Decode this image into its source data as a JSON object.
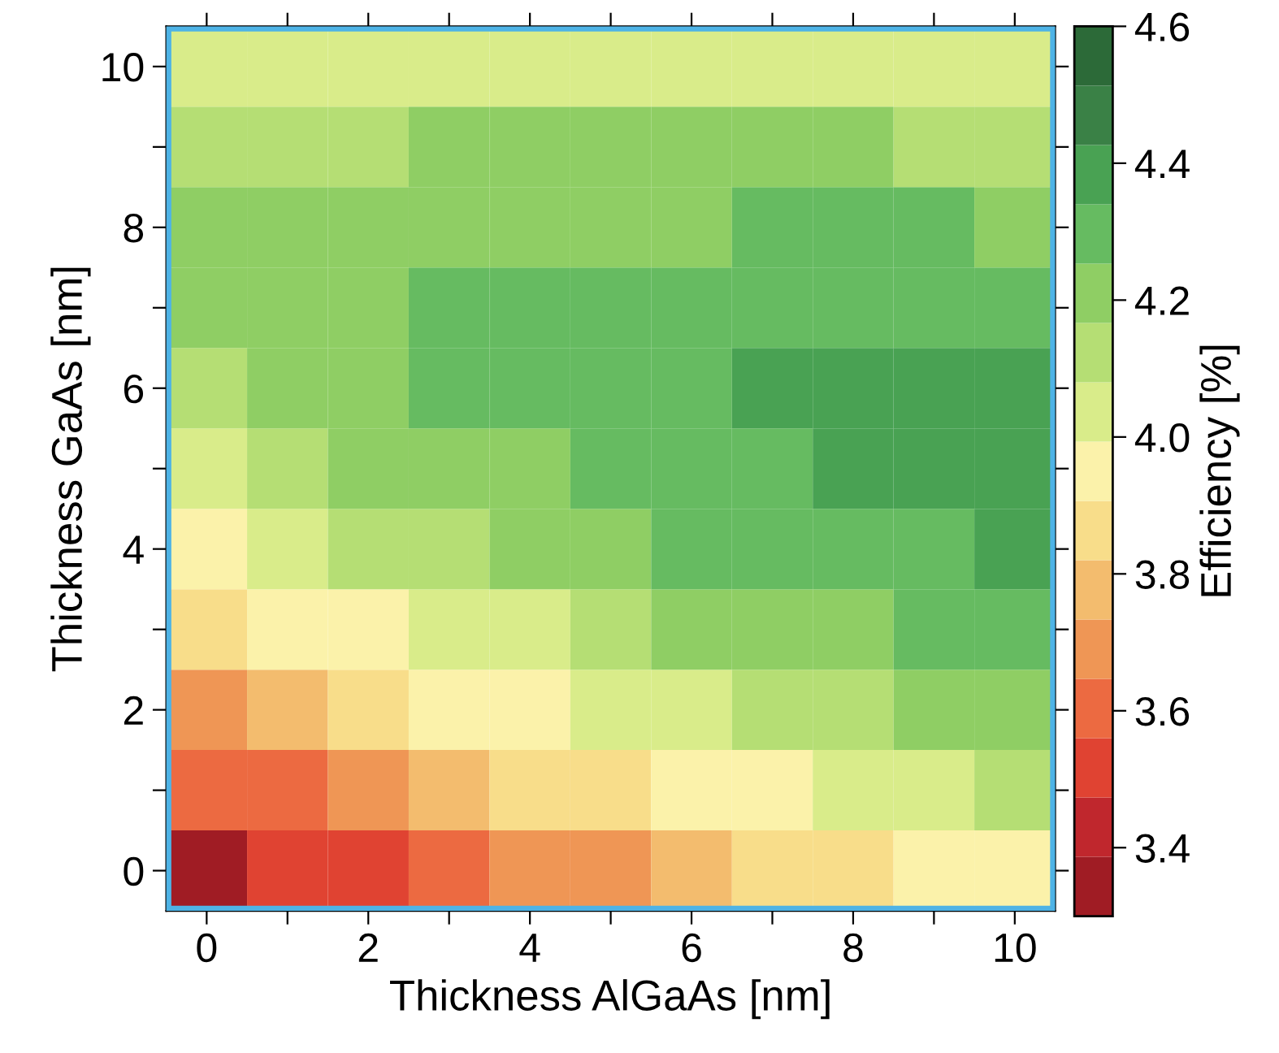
{
  "chart_data": {
    "type": "heatmap",
    "xlabel": "Thickness AlGaAs [nm]",
    "ylabel": "Thickness GaAs [nm]",
    "clabel": "Efficiency [%]",
    "categories": [
      "0",
      null,
      "2",
      null,
      "4",
      null,
      "6",
      null,
      "8",
      null,
      "10"
    ],
    "y_categories": [
      "10",
      null,
      "8",
      null,
      "6",
      null,
      "4",
      null,
      "2",
      null,
      "0"
    ],
    "clim": [
      3.3,
      4.6
    ],
    "cticks": [
      3.4,
      3.6,
      3.8,
      {
        "value": 4,
        "label": "4.0"
      },
      4.2,
      4.4,
      4.6
    ],
    "colors": [
      "#a01c24",
      "#c0272d",
      "#e04332",
      "#ec6a41",
      "#ef9655",
      "#f3bc6e",
      "#f8dd8a",
      "#fbf2aa",
      "#d9ec8a",
      "#b5de74",
      "#8fce64",
      "#66bb61",
      "#49a253",
      "#3a8146",
      "#2c6a38"
    ],
    "cells": [
      [
        4.04,
        4.04,
        4.04,
        4.04,
        4.04,
        4.04,
        4.04,
        4.04,
        4.04,
        4.04,
        4.04
      ],
      [
        4.12,
        4.12,
        4.12,
        4.21,
        4.21,
        4.21,
        4.21,
        4.21,
        4.21,
        4.12,
        4.12
      ],
      [
        4.21,
        4.21,
        4.21,
        4.21,
        4.21,
        4.21,
        4.21,
        4.3,
        4.3,
        4.3,
        4.21
      ],
      [
        4.21,
        4.21,
        4.21,
        4.3,
        4.3,
        4.3,
        4.3,
        4.3,
        4.3,
        4.3,
        4.3
      ],
      [
        4.12,
        4.21,
        4.21,
        4.3,
        4.3,
        4.3,
        4.3,
        4.38,
        4.38,
        4.38,
        4.38
      ],
      [
        4.04,
        4.12,
        4.21,
        4.21,
        4.21,
        4.3,
        4.3,
        4.3,
        4.38,
        4.38,
        4.38
      ],
      [
        3.95,
        4.04,
        4.12,
        4.12,
        4.21,
        4.21,
        4.3,
        4.3,
        4.3,
        4.3,
        4.38
      ],
      [
        3.86,
        3.95,
        3.95,
        4.04,
        4.04,
        4.12,
        4.21,
        4.21,
        4.21,
        4.3,
        4.3
      ],
      [
        3.69,
        3.78,
        3.86,
        3.95,
        3.95,
        4.04,
        4.04,
        4.12,
        4.12,
        4.21,
        4.21
      ],
      [
        3.6,
        3.6,
        3.69,
        3.78,
        3.86,
        3.86,
        3.95,
        3.95,
        4.04,
        4.04,
        4.12
      ],
      [
        3.34,
        3.52,
        3.52,
        3.6,
        3.69,
        3.69,
        3.78,
        3.86,
        3.86,
        3.95,
        3.95
      ]
    ]
  }
}
